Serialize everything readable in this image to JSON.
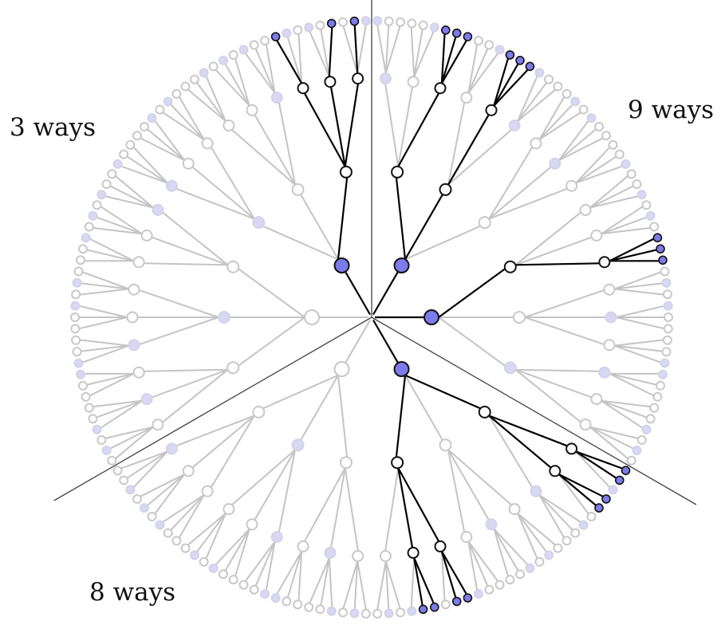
{
  "labels": {
    "top_left": "3 ways",
    "top_right": "9 ways",
    "bottom_left": "8 ways"
  },
  "colors": {
    "gray_line": "#c4c4c4",
    "gray_node": "#c8c8c8",
    "light_purple_fill": "#d8d8f2",
    "highlight_fill": "#7b7bea",
    "highlight_line": "#000000",
    "sector_divider": "#444444"
  },
  "tree": {
    "sectors": 3,
    "branching": [
      2,
      3,
      3,
      3
    ],
    "highlighted_paths": {
      "sector_1": 3,
      "sector_2": 9,
      "sector_3": 8
    }
  }
}
